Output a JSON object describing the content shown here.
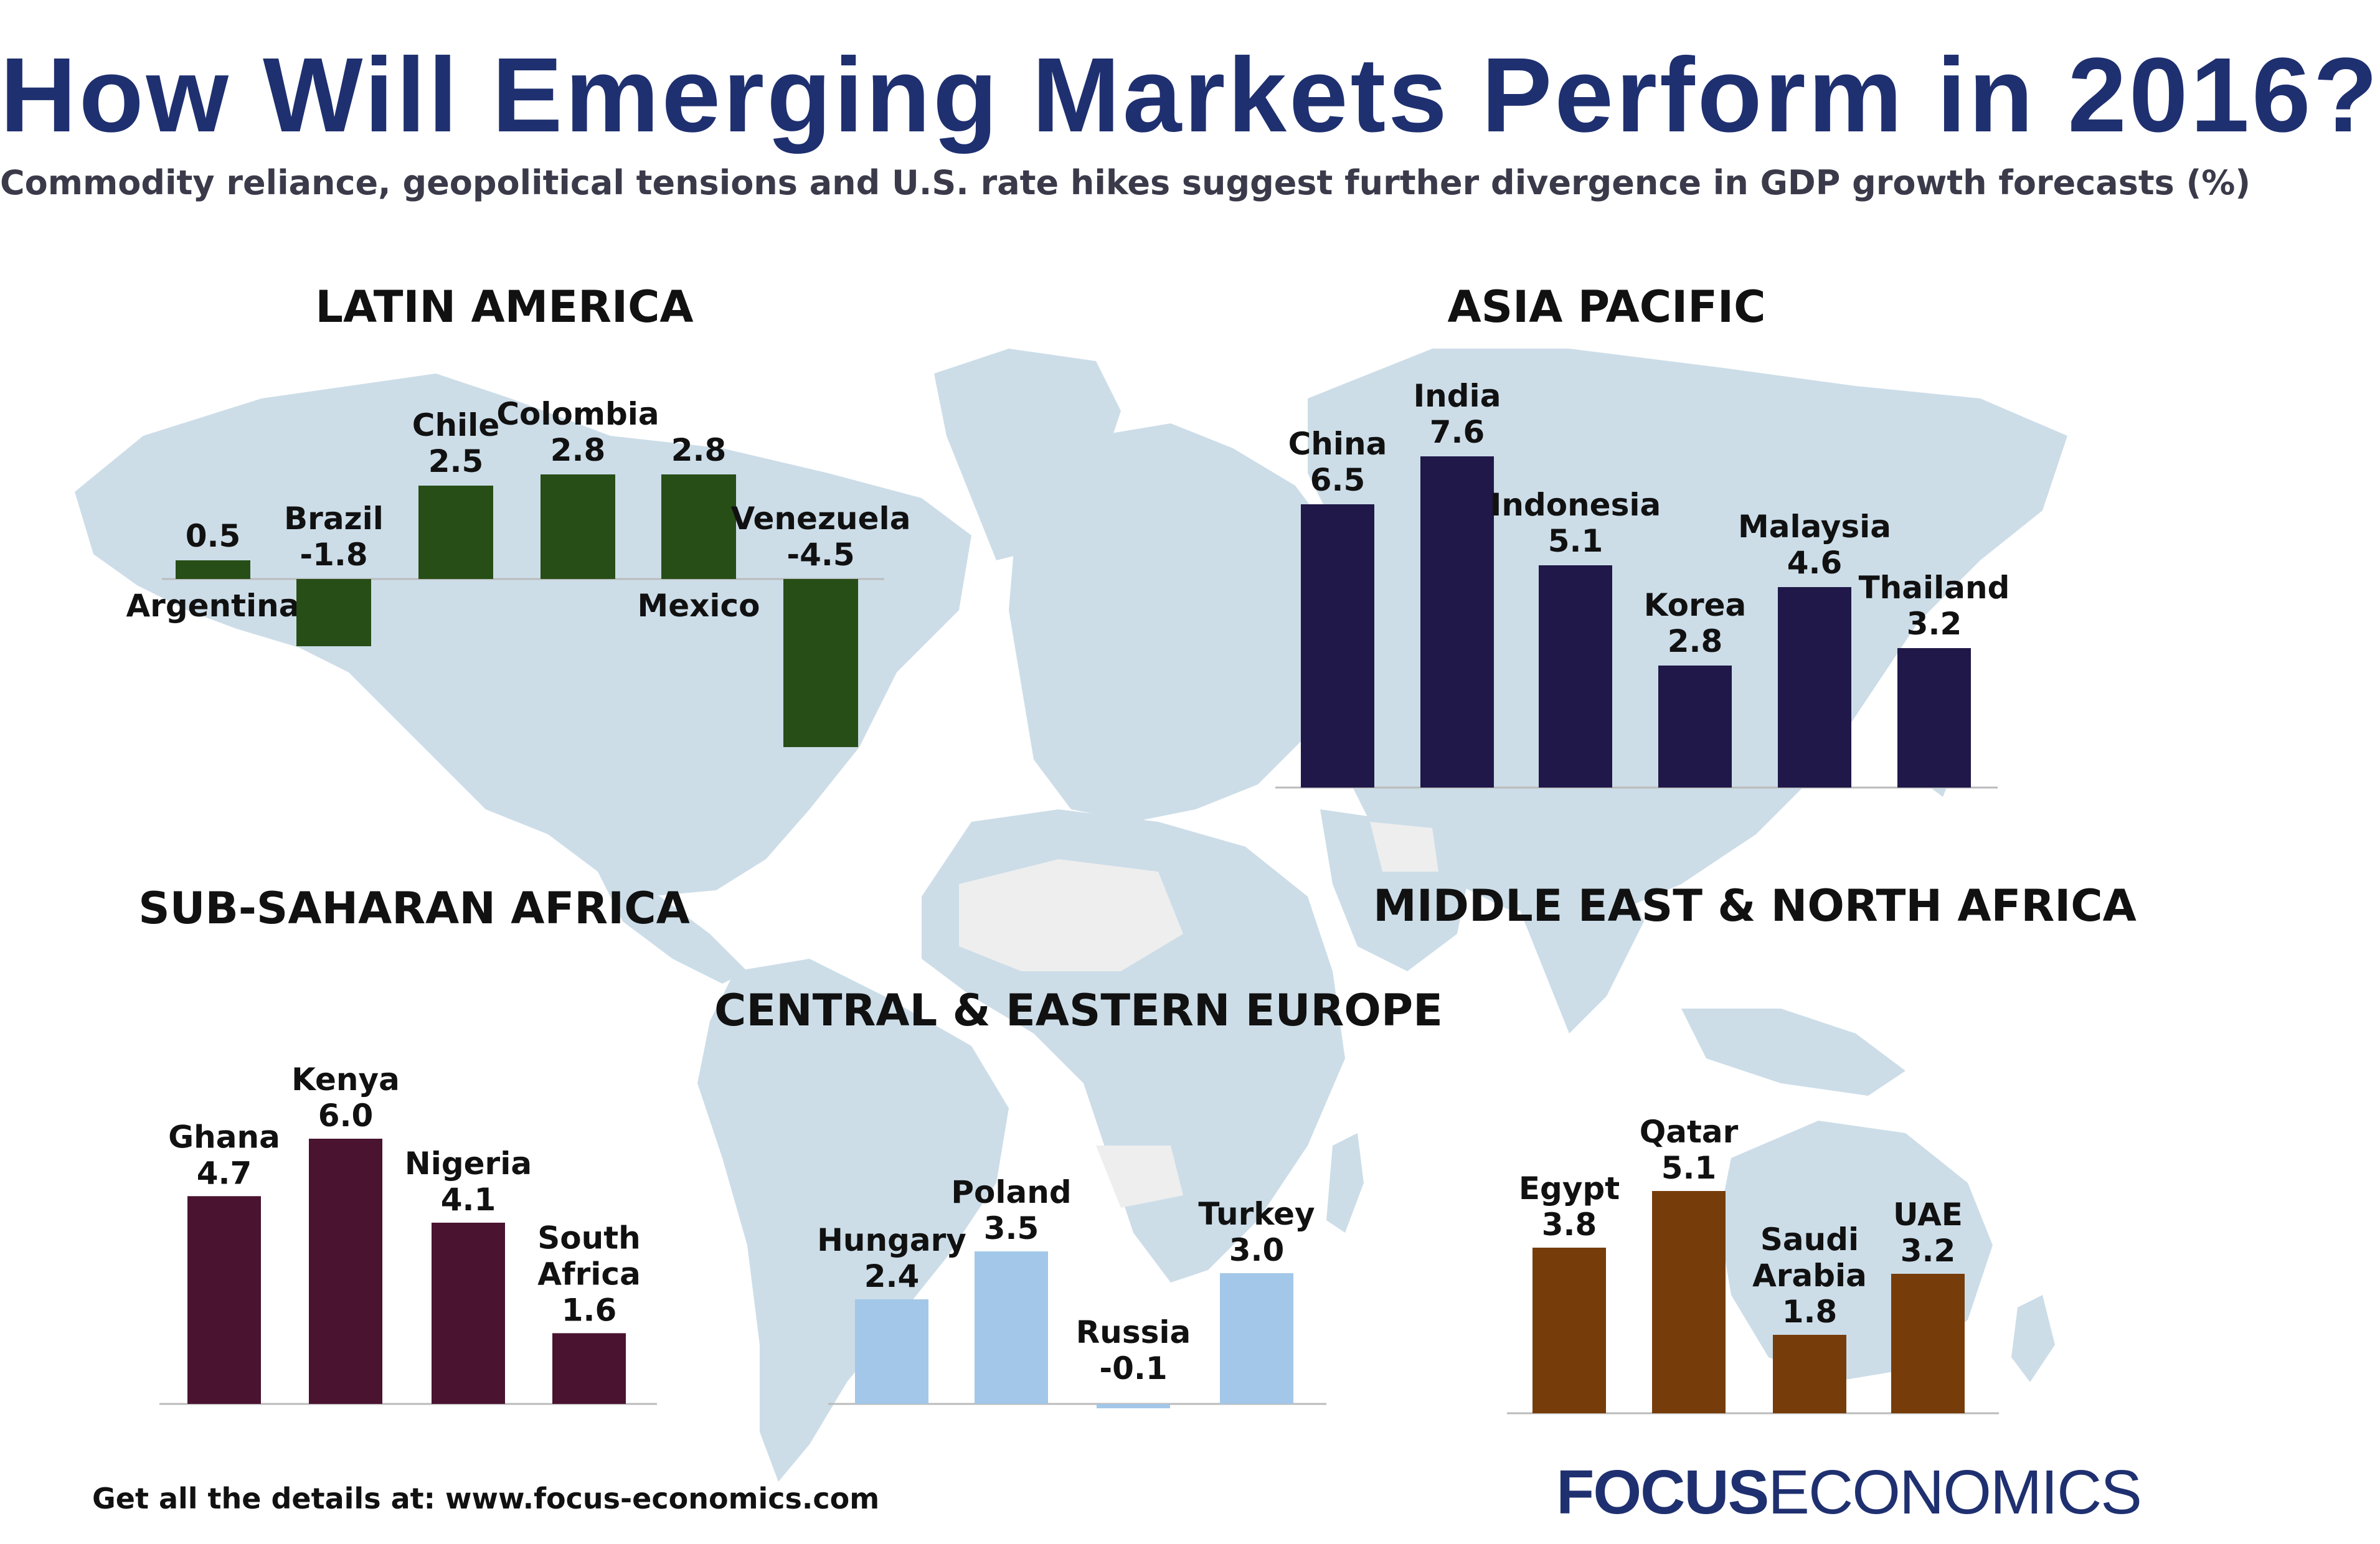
{
  "title": "How Will Emerging Markets Perform in 2016?",
  "subtitle": "Commodity reliance, geopolitical tensions and U.S. rate hikes suggest further divergence in GDP growth forecasts (%)",
  "footer": "Get all the details at: www.focus-economics.com",
  "brand": {
    "bold": "FOCUS",
    "light": "ECONOMICS"
  },
  "colors": {
    "title": "#1f3070",
    "map": "#ccdde8",
    "map_light": "#eeeeee"
  },
  "chart_data": [
    {
      "type": "bar",
      "title": "LATIN AMERICA",
      "color": "#274e17",
      "categories": [
        "Argentina",
        "Brazil",
        "Chile",
        "Colombia",
        "Mexico",
        "Venezuela"
      ],
      "values": [
        0.5,
        -1.8,
        2.5,
        2.8,
        2.8,
        -4.5
      ],
      "value_labels": [
        "0.5",
        "-1.8",
        "2.5",
        "2.8",
        "2.8",
        "-4.5"
      ]
    },
    {
      "type": "bar",
      "title": "ASIA PACIFIC",
      "color": "#1f1848",
      "categories": [
        "China",
        "India",
        "Indonesia",
        "Korea",
        "Malaysia",
        "Thailand"
      ],
      "values": [
        6.5,
        7.6,
        5.1,
        2.8,
        4.6,
        3.2
      ],
      "value_labels": [
        "6.5",
        "7.6",
        "5.1",
        "2.8",
        "4.6",
        "3.2"
      ]
    },
    {
      "type": "bar",
      "title": "SUB-SAHARAN AFRICA",
      "color": "#4a1330",
      "categories": [
        "Ghana",
        "Kenya",
        "Nigeria",
        "South Africa"
      ],
      "values": [
        4.7,
        6.0,
        4.1,
        1.6
      ],
      "value_labels": [
        "4.7",
        "6.0",
        "4.1",
        "1.6"
      ]
    },
    {
      "type": "bar",
      "title": "CENTRAL & EASTERN EUROPE",
      "color": "#a3c7e8",
      "categories": [
        "Hungary",
        "Poland",
        "Russia",
        "Turkey"
      ],
      "values": [
        2.4,
        3.5,
        -0.1,
        3.0
      ],
      "value_labels": [
        "2.4",
        "3.5",
        "-0.1",
        "3.0"
      ]
    },
    {
      "type": "bar",
      "title": "MIDDLE EAST & NORTH AFRICA",
      "color": "#763d0a",
      "categories": [
        "Egypt",
        "Qatar",
        "Saudi Arabia",
        "UAE"
      ],
      "values": [
        3.8,
        5.1,
        1.8,
        3.2
      ],
      "value_labels": [
        "3.8",
        "5.1",
        "1.8",
        "3.2"
      ]
    }
  ]
}
